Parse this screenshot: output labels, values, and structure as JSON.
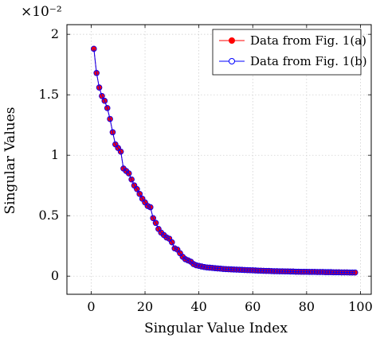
{
  "chart_data": {
    "type": "line",
    "xlabel": "Singular Value Index",
    "ylabel": "Singular Values",
    "scale_label": "×10⁻²",
    "xlim": [
      -9,
      104
    ],
    "ylim": [
      -0.15,
      2.08
    ],
    "grid": true,
    "legend_position": "top-right",
    "x_ticks": [
      0,
      20,
      40,
      60,
      80,
      100
    ],
    "x_tick_labels": [
      "0",
      "20",
      "40",
      "60",
      "80",
      "100"
    ],
    "y_ticks": [
      0,
      0.5,
      1,
      1.5,
      2
    ],
    "y_tick_labels": [
      "0",
      "0.5",
      "1",
      "1.5",
      "2"
    ],
    "x": [
      1,
      2,
      3,
      4,
      5,
      6,
      7,
      8,
      9,
      10,
      11,
      12,
      13,
      14,
      15,
      16,
      17,
      18,
      19,
      20,
      21,
      22,
      23,
      24,
      25,
      26,
      27,
      28,
      29,
      30,
      31,
      32,
      33,
      34,
      35,
      36,
      37,
      38,
      39,
      40,
      41,
      42,
      43,
      44,
      45,
      46,
      47,
      48,
      49,
      50,
      51,
      52,
      53,
      54,
      55,
      56,
      57,
      58,
      59,
      60,
      61,
      62,
      63,
      64,
      65,
      66,
      67,
      68,
      69,
      70,
      71,
      72,
      73,
      74,
      75,
      76,
      77,
      78,
      79,
      80,
      81,
      82,
      83,
      84,
      85,
      86,
      87,
      88,
      89,
      90,
      91,
      92,
      93,
      94,
      95,
      96,
      97,
      98
    ],
    "series": [
      {
        "name": "Data from Fig. 1(a)",
        "color": "#ff0000",
        "marker": "filled-circle",
        "values": [
          1.88,
          1.68,
          1.56,
          1.49,
          1.45,
          1.39,
          1.3,
          1.19,
          1.09,
          1.06,
          1.03,
          0.89,
          0.87,
          0.85,
          0.8,
          0.75,
          0.72,
          0.68,
          0.64,
          0.61,
          0.58,
          0.57,
          0.48,
          0.44,
          0.39,
          0.36,
          0.34,
          0.32,
          0.31,
          0.28,
          0.23,
          0.22,
          0.19,
          0.16,
          0.14,
          0.13,
          0.12,
          0.1,
          0.09,
          0.085,
          0.08,
          0.075,
          0.072,
          0.07,
          0.068,
          0.066,
          0.064,
          0.062,
          0.06,
          0.058,
          0.057,
          0.056,
          0.055,
          0.054,
          0.053,
          0.052,
          0.051,
          0.05,
          0.049,
          0.048,
          0.047,
          0.046,
          0.045,
          0.044,
          0.043,
          0.043,
          0.042,
          0.041,
          0.041,
          0.04,
          0.04,
          0.039,
          0.039,
          0.038,
          0.038,
          0.037,
          0.037,
          0.036,
          0.036,
          0.036,
          0.035,
          0.035,
          0.035,
          0.034,
          0.034,
          0.034,
          0.033,
          0.033,
          0.033,
          0.032,
          0.032,
          0.032,
          0.031,
          0.031,
          0.031,
          0.03,
          0.03,
          0.03
        ]
      },
      {
        "name": "Data from Fig. 1(b)",
        "color": "#0000ff",
        "marker": "open-circle",
        "values": [
          1.88,
          1.68,
          1.56,
          1.49,
          1.45,
          1.39,
          1.3,
          1.19,
          1.09,
          1.06,
          1.03,
          0.89,
          0.87,
          0.85,
          0.8,
          0.75,
          0.72,
          0.68,
          0.64,
          0.61,
          0.58,
          0.57,
          0.48,
          0.44,
          0.39,
          0.36,
          0.34,
          0.32,
          0.31,
          0.28,
          0.23,
          0.22,
          0.19,
          0.16,
          0.14,
          0.13,
          0.12,
          0.1,
          0.09,
          0.085,
          0.08,
          0.075,
          0.072,
          0.07,
          0.068,
          0.066,
          0.064,
          0.062,
          0.06,
          0.058,
          0.057,
          0.056,
          0.055,
          0.054,
          0.053,
          0.052,
          0.051,
          0.05,
          0.049,
          0.048,
          0.047,
          0.046,
          0.045,
          0.044,
          0.043,
          0.043,
          0.042,
          0.041,
          0.041,
          0.04,
          0.04,
          0.039,
          0.039,
          0.038,
          0.038,
          0.037,
          0.037,
          0.036,
          0.036,
          0.036,
          0.035,
          0.035,
          0.035,
          0.034,
          0.034,
          0.034,
          0.033,
          0.033,
          0.033,
          0.032,
          0.032,
          0.032,
          0.031,
          0.031,
          0.031,
          0.03,
          0.03,
          0.03
        ]
      }
    ]
  }
}
